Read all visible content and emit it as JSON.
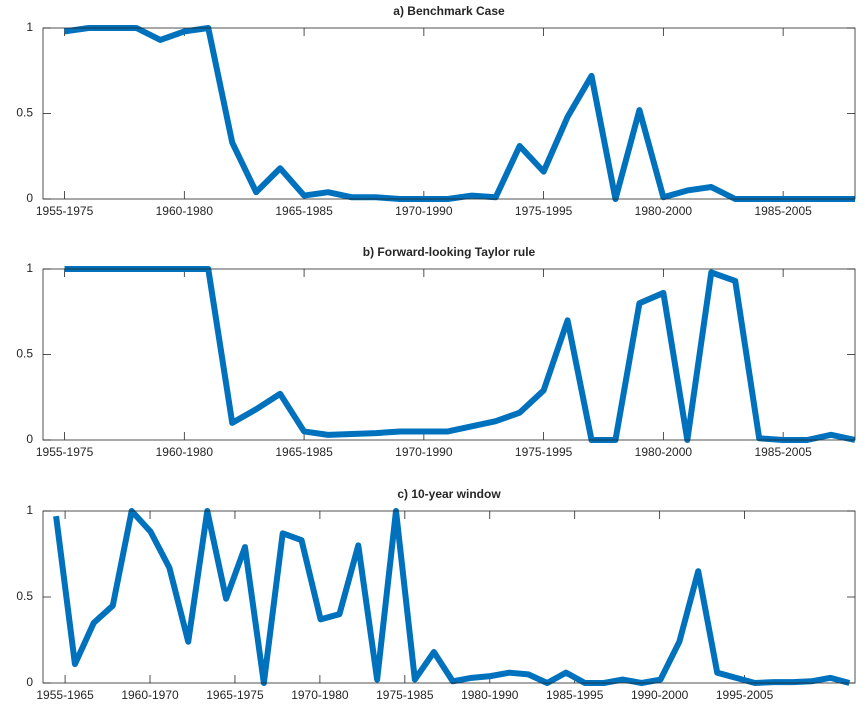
{
  "chart_data": [
    {
      "type": "line",
      "title": "a) Benchmark Case",
      "x": [
        1955,
        1956,
        1957,
        1958,
        1959,
        1960,
        1961,
        1962,
        1963,
        1964,
        1965,
        1966,
        1967,
        1968,
        1969,
        1970,
        1971,
        1972,
        1973,
        1974,
        1975,
        1976,
        1977,
        1978,
        1979,
        1980,
        1981,
        1982,
        1983,
        1984,
        1985,
        1986,
        1987,
        1988
      ],
      "series": [
        {
          "color": "#0072bd",
          "values": [
            0.98,
            1.0,
            1.0,
            1.0,
            0.93,
            0.98,
            1.0,
            0.33,
            0.04,
            0.18,
            0.02,
            0.04,
            0.01,
            0.01,
            0.0,
            0.0,
            0.0,
            0.02,
            0.01,
            0.31,
            0.16,
            0.48,
            0.72,
            0.0,
            0.52,
            0.01,
            0.05,
            0.07,
            0.0,
            0.0,
            0.0,
            0.0,
            0.0,
            0.0
          ]
        }
      ],
      "xlim": [
        1954.1,
        1988
      ],
      "xticks": [
        {
          "value": 1955,
          "label": "1955-1975"
        },
        {
          "value": 1960,
          "label": "1960-1980"
        },
        {
          "value": 1965,
          "label": "1965-1985"
        },
        {
          "value": 1970,
          "label": "1970-1990"
        },
        {
          "value": 1975,
          "label": "1975-1995"
        },
        {
          "value": 1980,
          "label": "1980-2000"
        },
        {
          "value": 1985,
          "label": "1985-2005"
        }
      ],
      "ylim": [
        0,
        1
      ],
      "yticks": [
        0,
        0.5,
        1
      ]
    },
    {
      "type": "line",
      "title": "b) Forward-looking Taylor rule",
      "x": [
        1955,
        1956,
        1957,
        1958,
        1959,
        1960,
        1961,
        1962,
        1963,
        1964,
        1965,
        1966,
        1967,
        1968,
        1969,
        1970,
        1971,
        1972,
        1973,
        1974,
        1975,
        1976,
        1977,
        1978,
        1979,
        1980,
        1981,
        1982,
        1983,
        1984,
        1985,
        1986,
        1987,
        1988
      ],
      "series": [
        {
          "color": "#0072bd",
          "values": [
            1.0,
            1.0,
            1.0,
            1.0,
            1.0,
            1.0,
            1.0,
            0.1,
            0.18,
            0.27,
            0.05,
            0.03,
            0.035,
            0.04,
            0.05,
            0.05,
            0.05,
            0.08,
            0.11,
            0.16,
            0.29,
            0.7,
            0.0,
            0.0,
            0.8,
            0.86,
            0.0,
            0.98,
            0.93,
            0.01,
            0.0,
            0.0,
            0.03,
            0.0
          ]
        }
      ],
      "xlim": [
        1954.1,
        1988
      ],
      "xticks": [
        {
          "value": 1955,
          "label": "1955-1975"
        },
        {
          "value": 1960,
          "label": "1960-1980"
        },
        {
          "value": 1965,
          "label": "1965-1985"
        },
        {
          "value": 1970,
          "label": "1970-1990"
        },
        {
          "value": 1975,
          "label": "1975-1995"
        },
        {
          "value": 1980,
          "label": "1980-2000"
        },
        {
          "value": 1985,
          "label": "1985-2005"
        }
      ],
      "ylim": [
        0,
        1
      ],
      "yticks": [
        0,
        0.5,
        1
      ]
    },
    {
      "type": "line",
      "title": "c) 10-year window",
      "x": [
        1954.47,
        1955.58,
        1956.69,
        1957.81,
        1958.92,
        1960.03,
        1961.14,
        1962.25,
        1963.37,
        1964.48,
        1965.59,
        1966.7,
        1967.81,
        1968.92,
        1970.04,
        1971.15,
        1972.26,
        1973.37,
        1974.48,
        1975.59,
        1976.71,
        1977.82,
        1978.93,
        1980.04,
        1981.15,
        1982.27,
        1983.38,
        1984.49,
        1985.6,
        1986.71,
        1987.82,
        1988.94,
        1990.05,
        1991.16,
        1992.27,
        1993.39,
        1994.5,
        1995.61,
        1996.72,
        1997.83,
        1998.94,
        2000.06,
        2001.17
      ],
      "series": [
        {
          "color": "#0072bd",
          "values": [
            0.97,
            0.11,
            0.35,
            0.45,
            1.0,
            0.88,
            0.67,
            0.24,
            1.0,
            0.49,
            0.79,
            0.0,
            0.87,
            0.83,
            0.37,
            0.4,
            0.8,
            0.02,
            1.0,
            0.02,
            0.18,
            0.01,
            0.03,
            0.04,
            0.06,
            0.05,
            0.0,
            0.06,
            0.0,
            0.0,
            0.02,
            0.0,
            0.02,
            0.24,
            0.65,
            0.06,
            0.03,
            0.0,
            0.005,
            0.005,
            0.01,
            0.03,
            0.0
          ]
        }
      ],
      "xlim": [
        1953.7,
        2001.5
      ],
      "xticks": [
        {
          "value": 1955,
          "label": "1955-1965"
        },
        {
          "value": 1960,
          "label": "1960-1970"
        },
        {
          "value": 1965,
          "label": "1965-1975"
        },
        {
          "value": 1970,
          "label": "1970-1980"
        },
        {
          "value": 1975,
          "label": "1975-1985"
        },
        {
          "value": 1980,
          "label": "1980-1990"
        },
        {
          "value": 1985,
          "label": "1985-1995"
        },
        {
          "value": 1990,
          "label": "1990-2000"
        },
        {
          "value": 1995,
          "label": "1995-2005"
        }
      ],
      "ylim": [
        0,
        1
      ],
      "yticks": [
        0,
        0.5,
        1
      ]
    }
  ]
}
